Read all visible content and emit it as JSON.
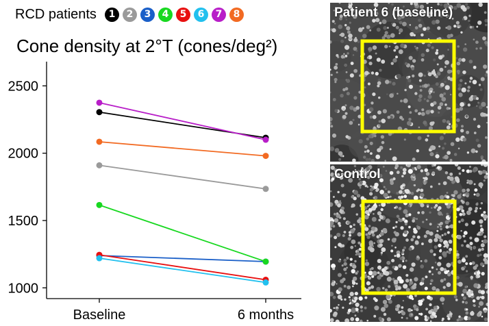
{
  "legend": {
    "title": "RCD patients",
    "badges": [
      {
        "label": "1",
        "color": "#000000"
      },
      {
        "label": "2",
        "color": "#9a9a9a"
      },
      {
        "label": "3",
        "color": "#1a5fc8"
      },
      {
        "label": "4",
        "color": "#18d820"
      },
      {
        "label": "5",
        "color": "#e81010"
      },
      {
        "label": "6",
        "color": "#22c0ee"
      },
      {
        "label": "7",
        "color": "#b81ec8"
      },
      {
        "label": "8",
        "color": "#f26a22"
      }
    ]
  },
  "chart_data": {
    "type": "line",
    "title": "Cone density at 2°T (cones/deg²)",
    "categories": [
      "Baseline",
      "6 months"
    ],
    "yticks": [
      "1000",
      "1500",
      "2000",
      "2500"
    ],
    "ylim": [
      920,
      2680
    ],
    "series": [
      {
        "name": "1",
        "color": "#000000",
        "values": [
          2305,
          2115
        ]
      },
      {
        "name": "2",
        "color": "#9a9a9a",
        "values": [
          1910,
          1735
        ]
      },
      {
        "name": "3",
        "color": "#1a5fc8",
        "values": [
          1240,
          1195
        ]
      },
      {
        "name": "4",
        "color": "#18d820",
        "values": [
          1615,
          1195
        ]
      },
      {
        "name": "5",
        "color": "#e81010",
        "values": [
          1245,
          1060
        ]
      },
      {
        "name": "6",
        "color": "#22c0ee",
        "values": [
          1220,
          1040
        ]
      },
      {
        "name": "7",
        "color": "#b81ec8",
        "values": [
          2375,
          2100
        ]
      },
      {
        "name": "8",
        "color": "#f26a22",
        "values": [
          2085,
          1980
        ]
      }
    ]
  },
  "panels": {
    "top_label": "Patient 6 (baseline)",
    "bottom_label": "Control",
    "box_color": "#ffff00"
  }
}
